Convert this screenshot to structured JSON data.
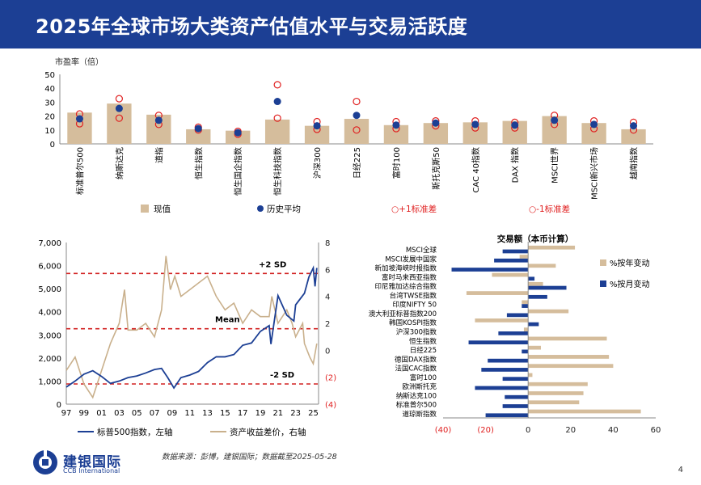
{
  "header": {
    "title": "2025年全球市场大类资产估值水平与交易活跃度"
  },
  "colors": {
    "navy": "#1c3f94",
    "tan": "#d5bd9c",
    "red": "#e02020",
    "dashRed": "#d22020",
    "line2": "#c9b08c"
  },
  "footer": {
    "source": "数据来源：彭博，建银国际；数据截至2025-05-28",
    "logo_cn": "建银国际",
    "logo_en": "CCB International",
    "page": "4"
  },
  "chart_data": [
    {
      "type": "bar",
      "ylabel": "市盈率（倍）",
      "ylim": [
        0,
        50
      ],
      "yticks": [
        "0",
        "10",
        "20",
        "30",
        "40",
        "50"
      ],
      "categories": [
        "标准普尔500",
        "纳斯达克",
        "道指",
        "恒生指数",
        "恒生国企指数",
        "恒生科技指数",
        "沪深300",
        "日经225",
        "富时100",
        "斯托克斯50",
        "CAC 40指数",
        "DAX 指数",
        "MSCI世界",
        "MSCI新兴市场",
        "越南指数"
      ],
      "series": [
        {
          "name": "现值",
          "values": [
            22.5,
            29,
            21,
            10.5,
            9.5,
            17.5,
            13,
            18,
            13.5,
            15,
            15.5,
            16.5,
            20,
            15,
            10.5
          ]
        },
        {
          "name": "历史平均",
          "values": [
            18,
            25.5,
            17,
            11,
            8,
            30.5,
            13,
            20.5,
            13.5,
            15,
            14,
            13.5,
            17,
            14,
            13
          ]
        },
        {
          "name": "+1标准差",
          "values": [
            21.5,
            32.5,
            20.5,
            12,
            9,
            42.5,
            16,
            30.5,
            16,
            16.5,
            16.5,
            15.5,
            20.5,
            16.5,
            15.5
          ]
        },
        {
          "name": "-1标准差",
          "values": [
            14.5,
            18.5,
            14,
            10,
            7,
            18.5,
            10.5,
            10,
            11,
            13,
            11.5,
            11.5,
            14,
            11,
            10
          ]
        }
      ],
      "legend": [
        "现值",
        "历史平均",
        "○+1标准差",
        "○-1标准差"
      ]
    },
    {
      "type": "line",
      "xticks": [
        "97",
        "99",
        "01",
        "03",
        "05",
        "07",
        "09",
        "11",
        "13",
        "15",
        "17",
        "19",
        "21",
        "23",
        "25"
      ],
      "yticks_left": [
        "0",
        "1,000",
        "2,000",
        "3,000",
        "4,000",
        "5,000",
        "6,000",
        "7,000"
      ],
      "yticks_right": [
        "(4)",
        "(2)",
        "0",
        "2",
        "4",
        "6",
        "8"
      ],
      "ylim_left": [
        0,
        7000
      ],
      "ylim_right": [
        -4,
        8
      ],
      "annotations": [
        "+2 SD",
        "Mean",
        "-2 SD"
      ],
      "ref_lines_right": [
        5.7,
        1.6,
        -2.5
      ],
      "series": [
        {
          "name": "标普500指数，左轴",
          "axis": "left",
          "x": [
            1997,
            1998,
            1999,
            2000,
            2001,
            2002,
            2003,
            2004,
            2005,
            2006,
            2007,
            2007.8,
            2008.5,
            2009.2,
            2010,
            2011,
            2012,
            2013,
            2014,
            2015,
            2016,
            2017,
            2018,
            2019,
            2020,
            2020.2,
            2021,
            2022,
            2022.8,
            2023,
            2024,
            2024.5,
            2025,
            2025.2,
            2025.4
          ],
          "values": [
            740,
            1000,
            1300,
            1450,
            1200,
            900,
            1000,
            1150,
            1220,
            1350,
            1500,
            1550,
            1150,
            700,
            1150,
            1260,
            1420,
            1800,
            2050,
            2050,
            2150,
            2550,
            2650,
            3150,
            3400,
            2600,
            4700,
            3850,
            3600,
            4300,
            4800,
            5500,
            5900,
            5100,
            5900
          ]
        },
        {
          "name": "资产收益差价，右轴",
          "axis": "right",
          "x": [
            1997,
            1998,
            1999,
            2000,
            2001,
            2002,
            2003,
            2003.6,
            2004,
            2005,
            2006,
            2007,
            2007.8,
            2008.3,
            2008.8,
            2009.3,
            2010,
            2011,
            2012,
            2013,
            2014,
            2015,
            2016,
            2017,
            2018,
            2019,
            2020,
            2020.3,
            2021,
            2022,
            2022.6,
            2023,
            2023.8,
            2024,
            2024.6,
            2025,
            2025.4
          ],
          "values": [
            -1.5,
            -0.5,
            -2.5,
            -3.5,
            -1.5,
            0.5,
            2,
            4.5,
            1.5,
            1.5,
            2,
            1,
            3,
            7,
            4.5,
            5.5,
            4,
            4.5,
            5,
            5.5,
            4,
            3,
            3.5,
            2,
            3,
            2.5,
            2.5,
            4,
            2,
            3,
            2,
            1,
            2,
            0.5,
            -0.5,
            -1,
            0.5
          ]
        }
      ]
    },
    {
      "type": "bar",
      "orientation": "horizontal",
      "title": "交易额（本币计算）",
      "xticks": [
        "(40)",
        "(20)",
        "0",
        "20",
        "40",
        "60"
      ],
      "xlim": [
        -40,
        60
      ],
      "categories": [
        "MSCI全球",
        "MSCI发展中国家",
        "新加坡海峡时报指数",
        "富时马来西亚指数",
        "印尼雅加达综合指数",
        "台湾TWSE指数",
        "印度NIFTY 50",
        "澳大利亚标普指数200",
        "韩国KOSPI指数",
        "沪深300指数",
        "恒生指数",
        "日经225",
        "德国DAX指数",
        "法国CAC指数",
        "富时100",
        "欧洲斯托克",
        "纳斯达克100",
        "标准普尔500",
        "道琼斯指数"
      ],
      "series": [
        {
          "name": "%按年变动",
          "values": [
            22,
            -4,
            13,
            -17,
            7,
            -29,
            -3,
            19,
            -25,
            -2,
            37,
            6,
            38,
            40,
            2,
            28,
            26,
            24,
            53
          ]
        },
        {
          "name": "%按月变动",
          "values": [
            -12,
            -16,
            -36,
            3,
            18,
            9,
            -3,
            -10,
            5,
            -14,
            -28,
            -3,
            -19,
            -22,
            -12,
            -25,
            -11,
            -12,
            -20
          ]
        }
      ]
    }
  ]
}
